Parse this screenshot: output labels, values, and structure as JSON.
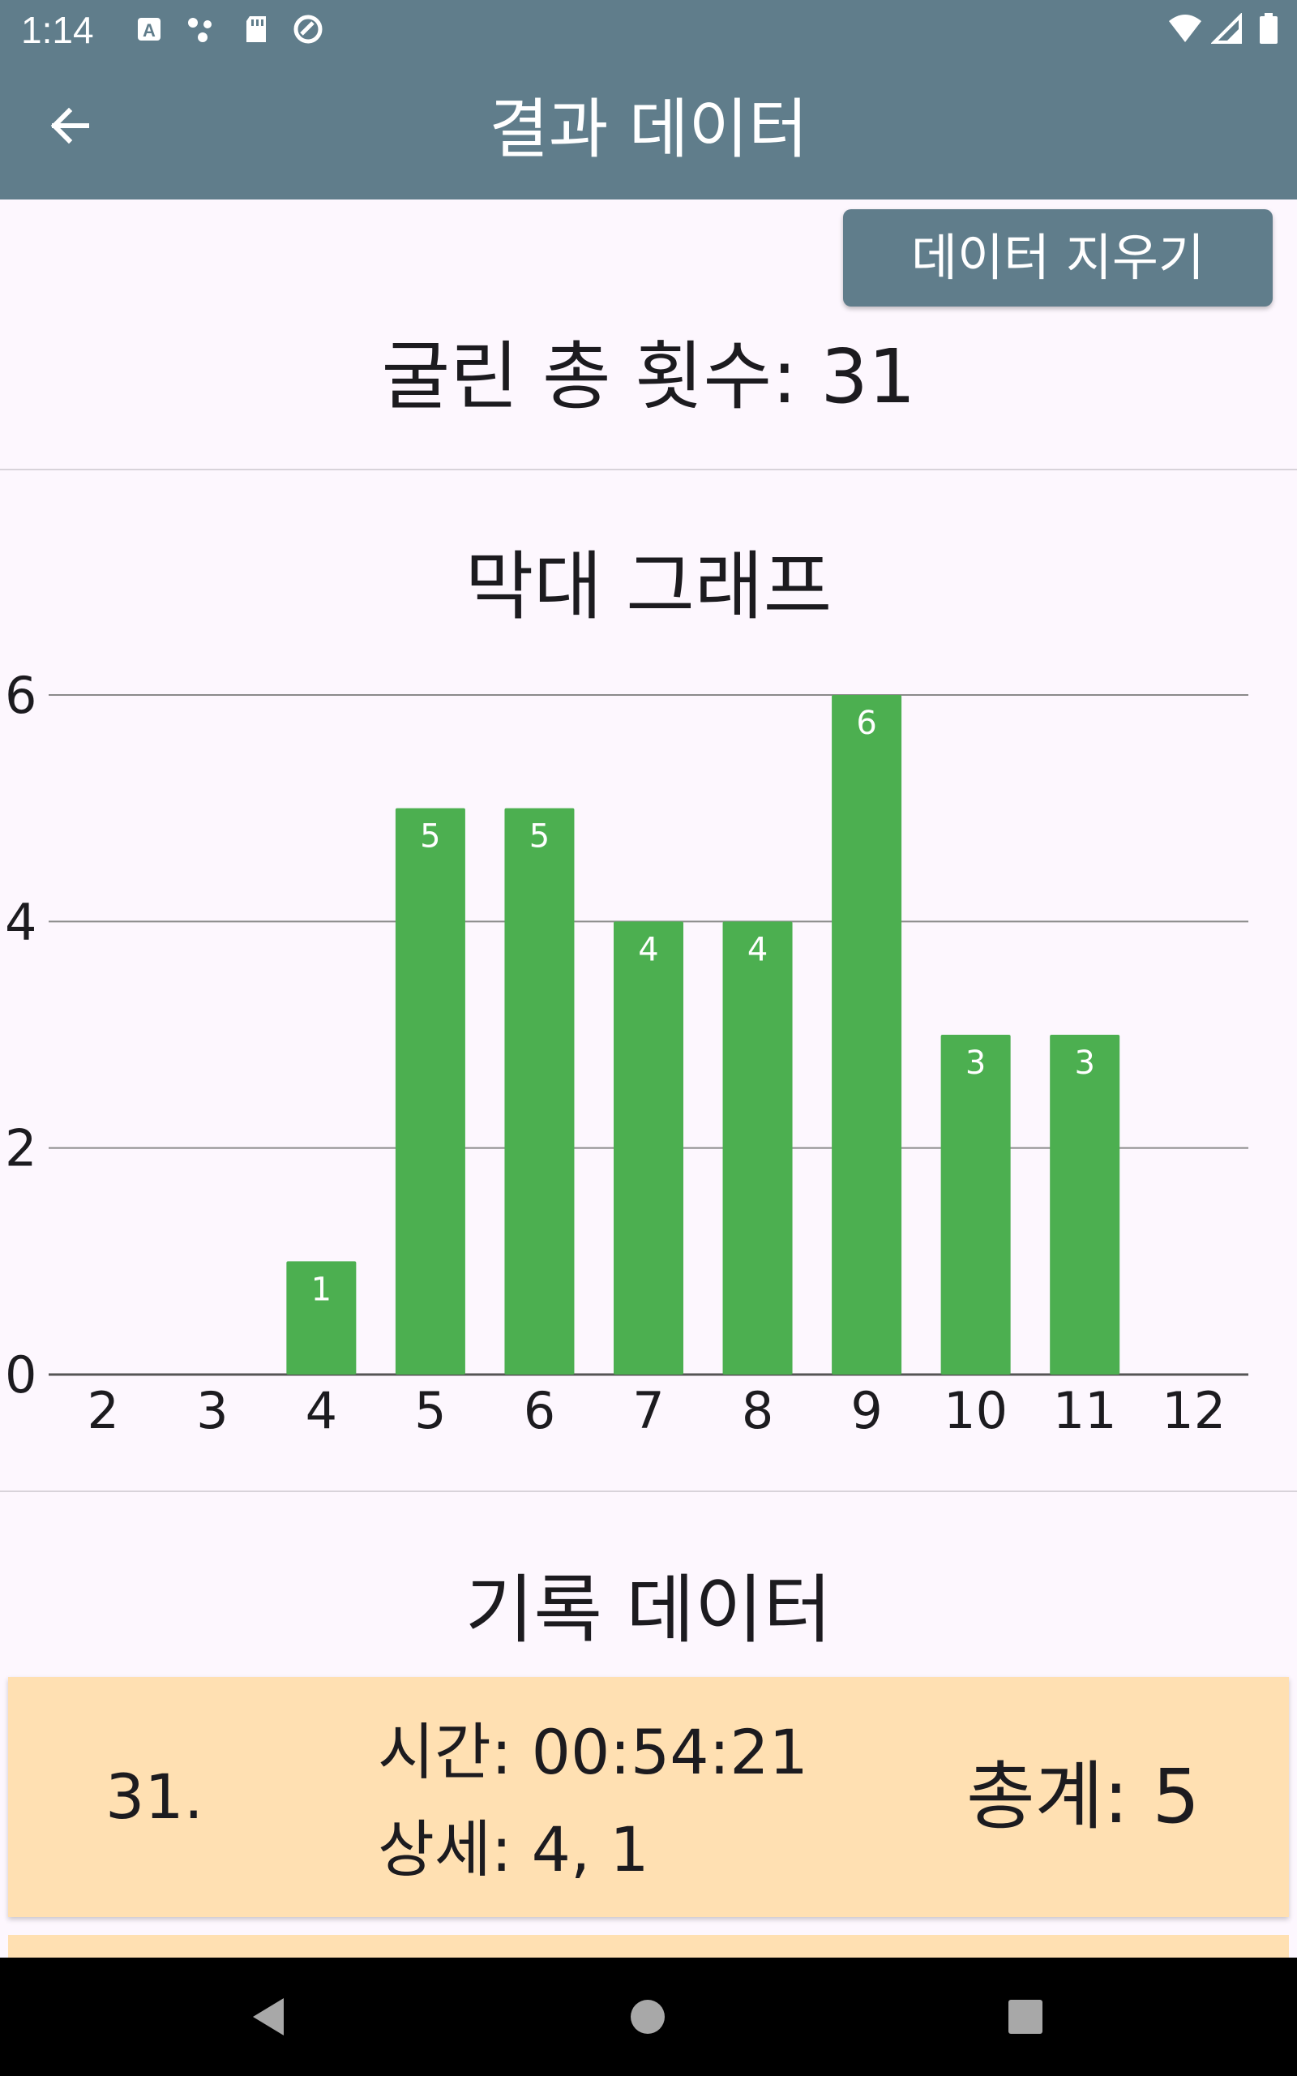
{
  "status_bar": {
    "time": "1:14",
    "icons": [
      "a-badge-icon",
      "dots-icon",
      "sd-card-icon",
      "sync-icon",
      "wifi-icon",
      "signal-icon",
      "battery-icon"
    ]
  },
  "app_bar": {
    "title": "결과 데이터"
  },
  "actions": {
    "clear_label": "데이터 지우기"
  },
  "summary": {
    "total_rolls": "굴린 총 횟수: 31"
  },
  "bar_section": {
    "title": "막대 그래프"
  },
  "chart_data": {
    "type": "bar",
    "title": "막대 그래프",
    "categories": [
      "2",
      "3",
      "4",
      "5",
      "6",
      "7",
      "8",
      "9",
      "10",
      "11",
      "12"
    ],
    "values": [
      0,
      0,
      1,
      5,
      5,
      4,
      4,
      6,
      3,
      3,
      0
    ],
    "ylim": [
      0,
      6
    ],
    "yticks": [
      0,
      2,
      4,
      6
    ],
    "grid": true,
    "bar_color": "#4caf50"
  },
  "records_section": {
    "title": "기록 데이터",
    "items": [
      {
        "index": "31.",
        "time": "시간: 00:54:21",
        "detail": "상세: 4, 1",
        "total": "총계: 5"
      }
    ]
  },
  "colors": {
    "primary": "#607d8b",
    "background": "#fdf7fe",
    "card": "#ffe0b2",
    "bar": "#4caf50"
  }
}
